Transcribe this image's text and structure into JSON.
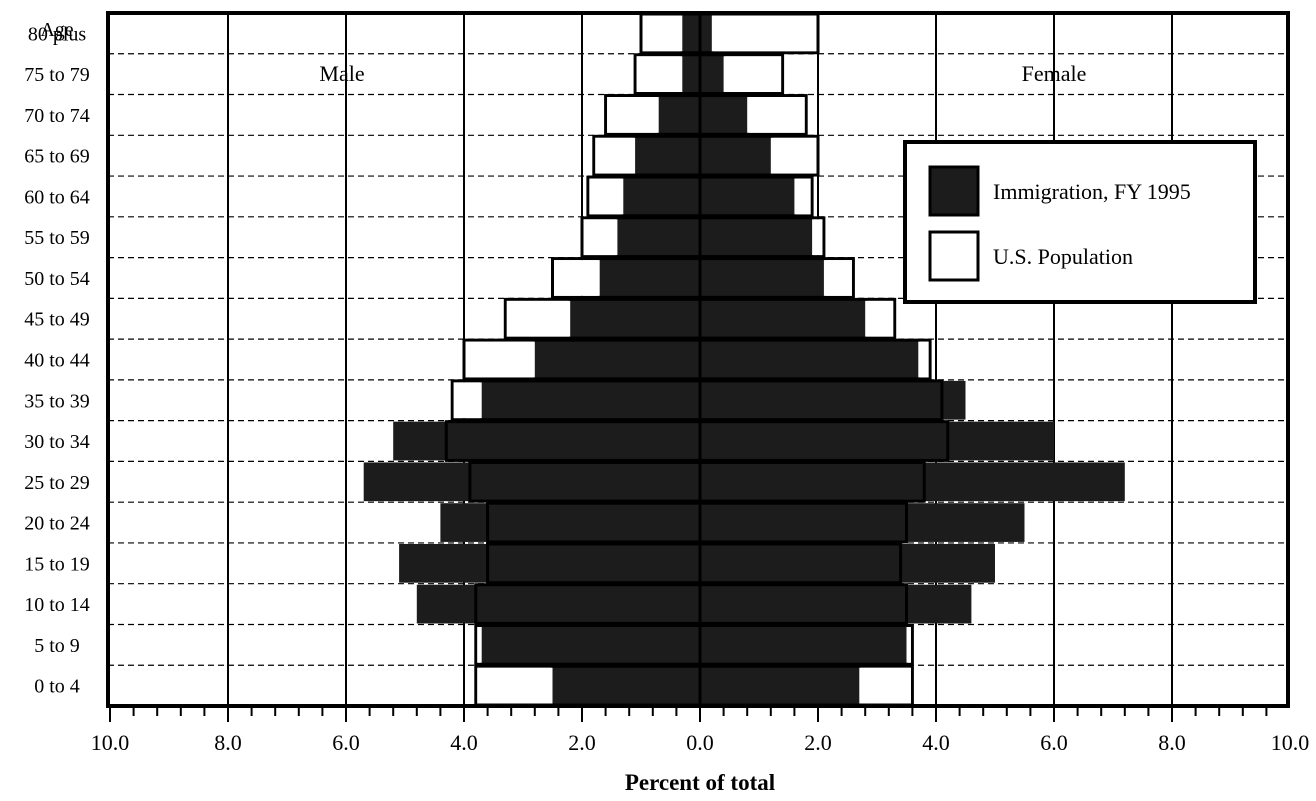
{
  "chart_data": {
    "type": "bar",
    "subtype": "population-pyramid",
    "title": "",
    "ylabel": "Age",
    "xlabel": "Percent of total",
    "x_ticks": [
      "10.0",
      "8.0",
      "6.0",
      "4.0",
      "2.0",
      "0.0",
      "2.0",
      "4.0",
      "6.0",
      "8.0",
      "10.0"
    ],
    "xlim": [
      -10,
      10
    ],
    "grid": "vertical solid, horizontal dashed",
    "side_labels": {
      "left": "Male",
      "right": "Female"
    },
    "legend": {
      "placement": "top-right"
    },
    "categories": [
      "0 to 4",
      "5 to 9",
      "10 to 14",
      "15 to 19",
      "20 to 24",
      "25 to 29",
      "30 to 34",
      "35 to 39",
      "40 to 44",
      "45 to 49",
      "50 to 54",
      "55 to 59",
      "60 to 64",
      "65 to 69",
      "70 to 74",
      "75 to 79",
      "80 plus"
    ],
    "series": [
      {
        "name": "Immigration, FY 1995",
        "color": "#1c1c1c",
        "male": [
          2.5,
          3.7,
          4.8,
          5.1,
          4.4,
          5.7,
          5.2,
          3.7,
          2.8,
          2.2,
          1.7,
          1.4,
          1.3,
          1.1,
          0.7,
          0.3,
          0.3
        ],
        "female": [
          2.7,
          3.5,
          4.6,
          5.0,
          5.5,
          7.2,
          6.0,
          4.5,
          3.7,
          2.8,
          2.1,
          1.9,
          1.6,
          1.2,
          0.8,
          0.4,
          0.2
        ]
      },
      {
        "name": "U.S. Population",
        "color": "#ffffff",
        "male": [
          3.8,
          3.8,
          3.8,
          3.6,
          3.6,
          3.9,
          4.3,
          4.2,
          4.0,
          3.3,
          2.5,
          2.0,
          1.9,
          1.8,
          1.6,
          1.1,
          1.0
        ],
        "female": [
          3.6,
          3.6,
          3.5,
          3.4,
          3.5,
          3.8,
          4.2,
          4.1,
          3.9,
          3.3,
          2.6,
          2.1,
          1.9,
          2.0,
          1.8,
          1.4,
          2.0
        ]
      }
    ]
  }
}
